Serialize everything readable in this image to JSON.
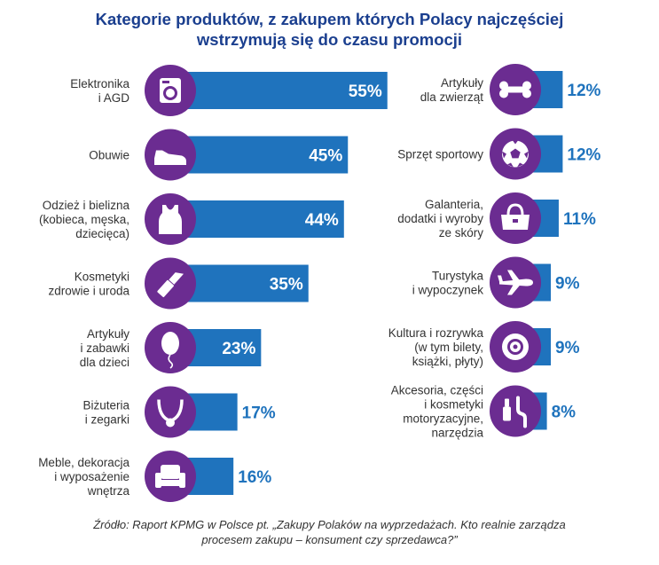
{
  "title": {
    "line1": "Kategorie produktów, z zakupem których Polacy najczęściej",
    "line2": "wstrzymują się do czasu promocji"
  },
  "source": {
    "line1": "Źródło: Raport KPMG w Polsce pt. „Zakupy Polaków na wyprzedażach. Kto realnie zarządza",
    "line2": "procesem zakupu – konsument czy sprzedawca?”"
  },
  "colors": {
    "bar": "#1f73bd",
    "circle": "#6b2c91",
    "value_outside": "#1f73bd",
    "value_inside": "#ffffff"
  },
  "chart_data": {
    "type": "bar",
    "unit": "%",
    "left_column": [
      {
        "label_lines": [
          "Elektronika",
          "i AGD"
        ],
        "value": 55,
        "display": "55%",
        "icon": "washing-machine-icon"
      },
      {
        "label_lines": [
          "Obuwie"
        ],
        "value": 45,
        "display": "45%",
        "icon": "shoe-icon"
      },
      {
        "label_lines": [
          "Odzież i bielizna",
          "(kobieca, męska,",
          "dziecięca)"
        ],
        "value": 44,
        "display": "44%",
        "icon": "tank-top-icon"
      },
      {
        "label_lines": [
          "Kosmetyki",
          "zdrowie i uroda"
        ],
        "value": 35,
        "display": "35%",
        "icon": "lipstick-icon"
      },
      {
        "label_lines": [
          "Artykuły",
          "i zabawki",
          "dla dzieci"
        ],
        "value": 23,
        "display": "23%",
        "icon": "balloon-icon"
      },
      {
        "label_lines": [
          "Biżuteria",
          "i zegarki"
        ],
        "value": 17,
        "display": "17%",
        "icon": "necklace-icon"
      },
      {
        "label_lines": [
          "Meble, dekoracja",
          "i wyposażenie",
          "wnętrza"
        ],
        "value": 16,
        "display": "16%",
        "icon": "armchair-icon"
      }
    ],
    "right_column": [
      {
        "label_lines": [
          "Artykuły",
          "dla zwierząt"
        ],
        "value": 12,
        "display": "12%",
        "icon": "bone-icon"
      },
      {
        "label_lines": [
          "Sprzęt sportowy"
        ],
        "value": 12,
        "display": "12%",
        "icon": "soccer-ball-icon"
      },
      {
        "label_lines": [
          "Galanteria,",
          "dodatki i wyroby",
          "ze skóry"
        ],
        "value": 11,
        "display": "11%",
        "icon": "handbag-icon"
      },
      {
        "label_lines": [
          "Turystyka",
          "i wypoczynek"
        ],
        "value": 9,
        "display": "9%",
        "icon": "airplane-icon"
      },
      {
        "label_lines": [
          "Kultura i rozrywka",
          "(w tym bilety,",
          "książki, płyty)"
        ],
        "value": 9,
        "display": "9%",
        "icon": "disc-icon"
      },
      {
        "label_lines": [
          "Akcesoria, części",
          "i kosmetyki",
          "motoryzacyjne,",
          "narzędzia"
        ],
        "value": 8,
        "display": "8%",
        "icon": "spark-plug-icon"
      }
    ]
  }
}
